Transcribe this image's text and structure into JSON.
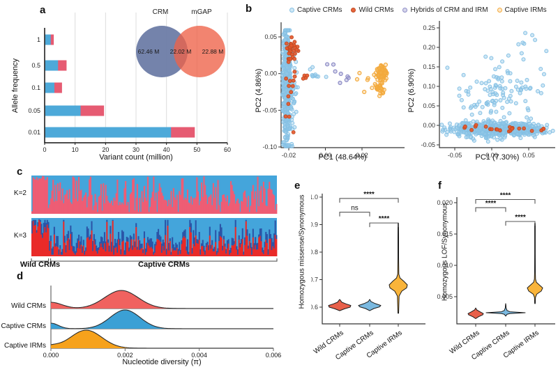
{
  "colors": {
    "bar_blue": "#4da9d9",
    "bar_red": "#e65b72",
    "venn_crm": "#6d7ca6",
    "venn_mgap": "#ee6248",
    "adx_lightblue": "#44a5db",
    "adx_pink": "#ee5d74",
    "adx_darkblue": "#2b55a7",
    "adx_red": "#e92a28",
    "ridge_red": "#f0625f",
    "ridge_blue": "#3ba0d5",
    "ridge_orange": "#f6a21c",
    "violin_red": "#e8604a",
    "violin_blue": "#7ab9e0",
    "violin_orange": "#f9b43a",
    "axis": "#333333"
  },
  "scatter_styles": {
    "captive_crm": {
      "stroke": "#85c0e4",
      "fill": "rgba(148,202,233,0.45)",
      "sw": 1
    },
    "wild_crm": {
      "stroke": "#bf4a20",
      "fill": "rgba(229,88,45,0.92)",
      "sw": 0.8
    },
    "hybrid": {
      "stroke": "#8d8cc6",
      "fill": "rgba(141,140,198,0.35)",
      "sw": 1.2
    },
    "captive_irm": {
      "stroke": "#f3a93c",
      "fill": "rgba(244,178,75,0.30)",
      "sw": 1.2
    }
  },
  "panels": {
    "a": {
      "label": "a",
      "xlabel": "Variant count (million)",
      "ylabel": "Allele frequency"
    },
    "b": {
      "label": "b",
      "legend": [
        "Captive CRMs",
        "Wild CRMs",
        "Hybrids of CRM and IRM",
        "Captive IRMs"
      ],
      "left": {
        "xlabel": "PC1 (48.64%)",
        "ylabel": "PC2 (4.86%)"
      },
      "right": {
        "xlabel": "PC1 (7.30%)",
        "ylabel": "PC2 (6.90%)"
      }
    },
    "c": {
      "label": "c",
      "k_labels": [
        "K=2",
        "K=3"
      ],
      "groups": [
        "Wild CRMs",
        "Captive CRMs"
      ]
    },
    "d": {
      "label": "d",
      "xlabel": "Nucleotide diversity (π)",
      "rows": [
        "Wild CRMs",
        "Captive CRMs",
        "Captive IRMs"
      ]
    },
    "e": {
      "label": "e",
      "ylabel": "Homozygous missense/Synonymous"
    },
    "f": {
      "label": "f",
      "ylabel": "Homozygous LOF/Synonymous"
    }
  },
  "chart_data": [
    {
      "id": "a",
      "type": "bar",
      "orientation": "horizontal",
      "stacked": true,
      "title": "",
      "xlabel": "Variant count (million)",
      "ylabel": "Allele frequency",
      "categories": [
        "1",
        "0.5",
        "0.1",
        "0.05",
        "0.01"
      ],
      "series": [
        {
          "name": "blue segment",
          "color": "bar_blue",
          "values": [
            2.0,
            4.4,
            3.2,
            11.8,
            41.5
          ]
        },
        {
          "name": "red segment",
          "color": "bar_red",
          "values": [
            1.0,
            2.8,
            2.5,
            7.7,
            7.8
          ]
        }
      ],
      "xticks": [
        0,
        10,
        20,
        30,
        40,
        50,
        60
      ],
      "xlim": [
        0,
        60
      ],
      "grid": true
    },
    {
      "id": "venn",
      "type": "venn",
      "sets": [
        {
          "name": "CRM",
          "value": "62.46 M",
          "color": "venn_crm"
        },
        {
          "name": "mGAP",
          "value": "22.88 M",
          "color": "venn_mgap"
        }
      ],
      "intersection": "22.02 M"
    },
    {
      "id": "b_left",
      "type": "scatter",
      "seed": 11,
      "xlabel": "PC1 (48.64%)",
      "ylabel": "PC2 (4.86%)",
      "xlim": [
        -0.0245,
        0.0425
      ],
      "ylim": [
        -0.101,
        0.0705
      ],
      "xticks": [
        {
          "v": -0.02,
          "label": "-0.02"
        },
        {
          "v": 0,
          "label": "0.00"
        },
        {
          "v": 0.02,
          "label": "0.02"
        }
      ],
      "yticks": [
        {
          "v": 0.05,
          "label": "0.05"
        },
        {
          "v": 0,
          "label": "0.00"
        },
        {
          "v": -0.05,
          "label": "-0.05"
        },
        {
          "v": -0.1,
          "label": "-0.10"
        }
      ],
      "clusters": [
        {
          "group": "captive_crm",
          "n": 450,
          "mx": -0.0213,
          "sx": 0.0013,
          "my": -0.018,
          "sy": 0.04,
          "clipy": [
            -0.099,
            0.059
          ]
        },
        {
          "group": "captive_crm",
          "n": 25,
          "mx": -0.017,
          "sx": 0.0015,
          "my": -0.02,
          "sy": 0.035,
          "clipy": [
            -0.09,
            0.05
          ]
        },
        {
          "group": "captive_crm",
          "n": 10,
          "mx": -0.006,
          "sx": 0.004,
          "my": -0.002,
          "sy": 0.004
        },
        {
          "group": "captive_irm",
          "n": 80,
          "mx": 0.0305,
          "sx": 0.0014,
          "my": 0.0,
          "sy": 0.006,
          "clipy": [
            -0.012,
            0.012
          ]
        },
        {
          "group": "captive_irm",
          "n": 25,
          "mx": 0.0302,
          "sx": 0.0012,
          "my": -0.021,
          "sy": 0.004
        },
        {
          "group": "captive_irm",
          "n": 7,
          "mx": 0.022,
          "sx": 0.004,
          "my": -0.008,
          "sy": 0.012
        },
        {
          "group": "hybrid",
          "n": 6,
          "mx": 0.008,
          "sx": 0.005,
          "my": -0.004,
          "sy": 0.004
        },
        {
          "group": "hybrid",
          "n": 2,
          "mx": 0.003,
          "sx": 0.002,
          "my": 0.014,
          "sy": 0.002
        },
        {
          "group": "wild_crm",
          "n": 28,
          "mx": -0.0185,
          "sx": 0.0018,
          "my": 0.034,
          "sy": 0.006
        },
        {
          "group": "wild_crm",
          "n": 22,
          "mx": -0.0195,
          "sx": 0.0018,
          "my": -0.02,
          "sy": 0.032,
          "clipy": [
            -0.08,
            0.02
          ]
        },
        {
          "group": "wild_crm",
          "n": 4,
          "mx": -0.011,
          "sx": 0.0015,
          "my": -0.001,
          "sy": 0.003
        }
      ]
    },
    {
      "id": "b_right",
      "type": "scatter",
      "seed": 22,
      "xlabel": "PC1 (7.30%)",
      "ylabel": "PC2 (6.90%)",
      "xlim": [
        -0.0785,
        0.0925
      ],
      "ylim": [
        -0.053,
        0.262
      ],
      "xticks": [
        {
          "v": -0.05,
          "label": "-0.05"
        },
        {
          "v": 0,
          "label": "0.00"
        },
        {
          "v": 0.05,
          "label": "0.05"
        }
      ],
      "yticks": [
        {
          "v": 0.25,
          "label": "0.25"
        },
        {
          "v": 0.2,
          "label": "0.20"
        },
        {
          "v": 0.15,
          "label": "0.15"
        },
        {
          "v": 0.1,
          "label": "0.10"
        },
        {
          "v": 0.05,
          "label": "0.05"
        },
        {
          "v": 0,
          "label": "0.00"
        },
        {
          "v": -0.05,
          "label": "-0.05"
        }
      ],
      "clusters": [
        {
          "group": "captive_crm",
          "n": 650,
          "mx": 0.008,
          "sx": 0.034,
          "my": -0.01,
          "sy": 0.008,
          "clipx": [
            -0.077,
            0.09
          ]
        },
        {
          "group": "captive_crm",
          "n": 20,
          "mx": 0.0,
          "sx": 0.03,
          "my": -0.028,
          "sy": 0.006
        },
        {
          "group": "captive_crm",
          "n": 120,
          "mx": 0.012,
          "sx": 0.032,
          "my": 0.07,
          "sy": 0.055,
          "clipy": [
            0.005,
            0.255
          ],
          "clipx": [
            -0.06,
            0.085
          ]
        },
        {
          "group": "captive_crm",
          "n": 8,
          "mx": 0.045,
          "sx": 0.012,
          "my": 0.2,
          "sy": 0.03
        },
        {
          "group": "wild_crm",
          "n": 22,
          "mx": 0.005,
          "sx": 0.038,
          "my": -0.008,
          "sy": 0.005,
          "clipx": [
            -0.07,
            0.07
          ]
        }
      ]
    },
    {
      "id": "c",
      "type": "admixture",
      "seed": 7,
      "n": 210,
      "wild_n": 15,
      "rows": [
        {
          "name": "K=2",
          "components": [
            "adx_pink",
            "adx_lightblue"
          ]
        },
        {
          "name": "K=3",
          "components": [
            "adx_red",
            "adx_darkblue",
            "adx_lightblue"
          ]
        }
      ],
      "group_labels": [
        "Wild CRMs",
        "Captive CRMs"
      ],
      "wild_fraction": 0.07
    },
    {
      "id": "d",
      "type": "ridgeline",
      "xlabel": "Nucleotide diversity (π)",
      "xlim": [
        0,
        0.006
      ],
      "xticks": [
        {
          "v": 0,
          "label": "0.000"
        },
        {
          "v": 0.002,
          "label": "0.002"
        },
        {
          "v": 0.004,
          "label": "0.004"
        },
        {
          "v": 0.006,
          "label": "0.006"
        }
      ],
      "rows": [
        {
          "name": "Wild CRMs",
          "color": "ridge_red",
          "peaks": [
            {
              "mu": 0.0019,
              "sigma": 0.00045,
              "amp": 26
            },
            {
              "mu": 0,
              "sigma": 0.0003,
              "amp": 9
            }
          ]
        },
        {
          "name": "Captive CRMs",
          "color": "ridge_blue",
          "peaks": [
            {
              "mu": 0.002,
              "sigma": 0.0004,
              "amp": 27
            },
            {
              "mu": 0,
              "sigma": 0.0002,
              "amp": 8
            }
          ]
        },
        {
          "name": "Captive IRMs",
          "color": "ridge_orange",
          "peaks": [
            {
              "mu": 0.00095,
              "sigma": 0.00042,
              "amp": 26
            },
            {
              "mu": 0,
              "sigma": 0.0002,
              "amp": 3
            }
          ]
        }
      ]
    },
    {
      "id": "e",
      "type": "violin",
      "ylabel": "Homozygous missense/Synonymous",
      "ylim": [
        0.575,
        1.005
      ],
      "yticks": [
        {
          "v": 1.0,
          "label": "1.0"
        },
        {
          "v": 0.9,
          "label": "0.9"
        },
        {
          "v": 0.8,
          "label": "0.8"
        },
        {
          "v": 0.7,
          "label": "0.7"
        },
        {
          "v": 0.6,
          "label": "0.6"
        }
      ],
      "categories": [
        "Wild CRMs",
        "Captive CRMs",
        "Captive IRMs"
      ],
      "violins": [
        {
          "name": "Wild CRMs",
          "color": "violin_red",
          "center": 0.605,
          "profile": [
            [
              0.587,
              0
            ],
            [
              0.594,
              7
            ],
            [
              0.6,
              15
            ],
            [
              0.606,
              16
            ],
            [
              0.612,
              9
            ],
            [
              0.618,
              3
            ],
            [
              0.625,
              1
            ],
            [
              0.628,
              0
            ]
          ]
        },
        {
          "name": "Captive CRMs",
          "color": "violin_blue",
          "center": 0.605,
          "profile": [
            [
              0.587,
              0
            ],
            [
              0.595,
              6
            ],
            [
              0.601,
              14
            ],
            [
              0.606,
              16
            ],
            [
              0.613,
              8
            ],
            [
              0.62,
              2
            ],
            [
              0.628,
              0
            ]
          ]
        },
        {
          "name": "Captive IRMs",
          "color": "violin_orange",
          "center": 0.68,
          "profile": [
            [
              0.578,
              0.5
            ],
            [
              0.605,
              0.8
            ],
            [
              0.64,
              1.2
            ],
            [
              0.658,
              5
            ],
            [
              0.67,
              12
            ],
            [
              0.681,
              13
            ],
            [
              0.694,
              8
            ],
            [
              0.706,
              2.5
            ],
            [
              0.72,
              0.8
            ],
            [
              0.78,
              0.5
            ],
            [
              0.85,
              0.45
            ],
            [
              0.905,
              0.4
            ]
          ]
        }
      ],
      "significance": [
        {
          "a": 0,
          "b": 2,
          "y": 0.995,
          "label": "****"
        },
        {
          "a": 0,
          "b": 1,
          "y": 0.945,
          "label": "ns"
        },
        {
          "a": 1,
          "b": 2,
          "y": 0.906,
          "label": "****"
        }
      ]
    },
    {
      "id": "f",
      "type": "violin",
      "ylabel": "Homozygous LOF/Synonymous",
      "ylim": [
        0.0008,
        0.0215
      ],
      "yticks": [
        {
          "v": 0.02,
          "label": "0.020"
        },
        {
          "v": 0.015,
          "label": "0.015"
        },
        {
          "v": 0.01,
          "label": "0.010"
        },
        {
          "v": 0.005,
          "label": "0.005"
        }
      ],
      "categories": [
        "Wild CRMs",
        "Captive CRMs",
        "Captive IRMs"
      ],
      "violins": [
        {
          "name": "Wild CRMs",
          "color": "violin_red",
          "center": 0.0023,
          "profile": [
            [
              0.0015,
              0
            ],
            [
              0.0018,
              4
            ],
            [
              0.0021,
              10
            ],
            [
              0.0023,
              11
            ],
            [
              0.0026,
              6
            ],
            [
              0.0029,
              1.5
            ],
            [
              0.0032,
              0
            ]
          ]
        },
        {
          "name": "Captive CRMs",
          "color": "violin_blue",
          "center": 0.0025,
          "profile": [
            [
              0.0019,
              0
            ],
            [
              0.0022,
              2
            ],
            [
              0.0023,
              6
            ],
            [
              0.00245,
              28
            ],
            [
              0.0026,
              6
            ],
            [
              0.0028,
              2
            ],
            [
              0.0032,
              0.6
            ],
            [
              0.0037,
              0.3
            ],
            [
              0.0039,
              0
            ]
          ]
        },
        {
          "name": "Captive IRMs",
          "color": "violin_orange",
          "center": 0.0064,
          "profile": [
            [
              0.0039,
              0.4
            ],
            [
              0.0049,
              0.7
            ],
            [
              0.0054,
              2.5
            ],
            [
              0.0059,
              9
            ],
            [
              0.0064,
              11
            ],
            [
              0.0069,
              6
            ],
            [
              0.0073,
              2
            ],
            [
              0.0078,
              0.8
            ],
            [
              0.009,
              0.5
            ],
            [
              0.012,
              0.45
            ],
            [
              0.0167,
              0.4
            ]
          ]
        }
      ],
      "significance": [
        {
          "a": 0,
          "b": 2,
          "y": 0.0205,
          "label": "****"
        },
        {
          "a": 0,
          "b": 1,
          "y": 0.0192,
          "label": "****"
        },
        {
          "a": 1,
          "b": 2,
          "y": 0.017,
          "label": "****"
        }
      ]
    }
  ]
}
